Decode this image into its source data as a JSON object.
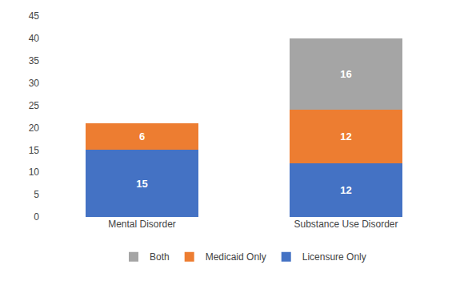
{
  "chart_data": {
    "type": "bar",
    "stacked": true,
    "categories": [
      "Mental Disorder",
      "Substance Use Disorder"
    ],
    "series": [
      {
        "name": "Licensure Only",
        "values": [
          15,
          12
        ],
        "color": "#4472C4"
      },
      {
        "name": "Medicaid Only",
        "values": [
          6,
          12
        ],
        "color": "#ED7D31"
      },
      {
        "name": "Both",
        "values": [
          0,
          16
        ],
        "color": "#A5A5A5"
      }
    ],
    "ylim": [
      0,
      45
    ],
    "yticks": [
      0,
      5,
      10,
      15,
      20,
      25,
      30,
      35,
      40,
      45
    ],
    "grid": false,
    "data_labels": true,
    "legend": "bottom"
  }
}
